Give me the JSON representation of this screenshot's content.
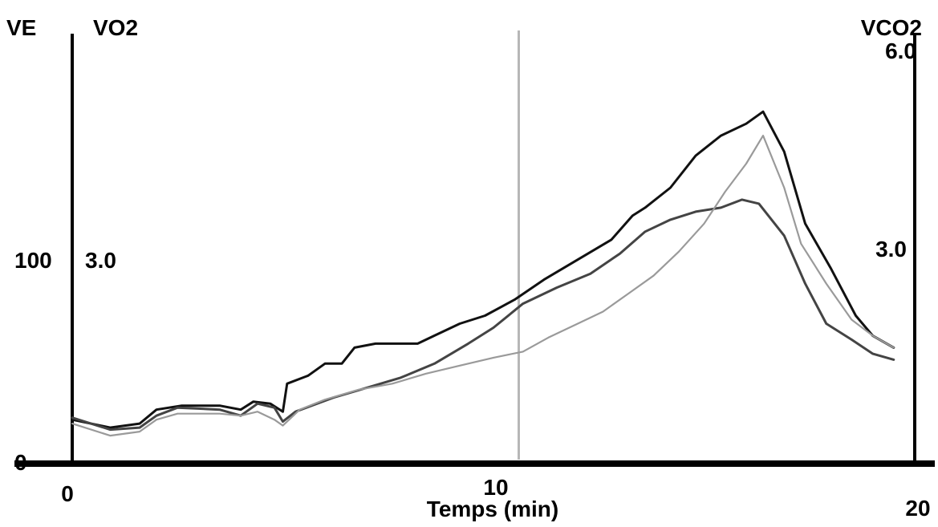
{
  "chart_data": {
    "type": "line",
    "title": "",
    "xlabel": "Temps (min)",
    "x_ticks": [
      {
        "value": 0,
        "label": "0"
      },
      {
        "value": 10,
        "label": "10"
      },
      {
        "value": 20,
        "label": "20"
      }
    ],
    "xlim": [
      0,
      20
    ],
    "marker_x": 10.6,
    "left_axis": {
      "ve_label": "VE",
      "vo2_label": "VO2",
      "ve_ticks": [
        {
          "value": 0,
          "label": "0"
        },
        {
          "value": 100,
          "label": "100"
        }
      ],
      "vo2_ticks": [
        {
          "value": 3.0,
          "label": "3.0"
        }
      ]
    },
    "right_axis": {
      "label": "VCO2",
      "ticks": [
        {
          "value": 3.0,
          "label": "3.0"
        },
        {
          "value": 6.0,
          "label": "6.0"
        }
      ]
    },
    "ylim_ve": [
      0,
      215
    ],
    "colors": {
      "axis": "#000000",
      "marker": "#b7b7b7",
      "series_dark": "#111111",
      "series_mid": "#444444",
      "series_light": "#9a9a9a"
    },
    "series": [
      {
        "axis": "VE",
        "color": "#111111",
        "points": [
          [
            0.0,
            22
          ],
          [
            0.9,
            18
          ],
          [
            1.6,
            20
          ],
          [
            2.0,
            27
          ],
          [
            2.6,
            29
          ],
          [
            3.5,
            29
          ],
          [
            4.0,
            27
          ],
          [
            4.3,
            31
          ],
          [
            4.7,
            30
          ],
          [
            5.0,
            26
          ],
          [
            5.1,
            40
          ],
          [
            5.6,
            44
          ],
          [
            6.0,
            50
          ],
          [
            6.4,
            50
          ],
          [
            6.7,
            58
          ],
          [
            7.2,
            60
          ],
          [
            8.2,
            60
          ],
          [
            8.6,
            64
          ],
          [
            9.2,
            70
          ],
          [
            9.8,
            74
          ],
          [
            10.5,
            82
          ],
          [
            11.2,
            92
          ],
          [
            12.0,
            102
          ],
          [
            12.8,
            112
          ],
          [
            13.3,
            124
          ],
          [
            13.6,
            128
          ],
          [
            14.2,
            138
          ],
          [
            14.8,
            154
          ],
          [
            15.4,
            164
          ],
          [
            16.0,
            170
          ],
          [
            16.4,
            176
          ],
          [
            16.9,
            156
          ],
          [
            17.4,
            120
          ],
          [
            18.0,
            98
          ],
          [
            18.6,
            74
          ],
          [
            19.0,
            64
          ],
          [
            19.5,
            58
          ]
        ]
      },
      {
        "axis": "VO2",
        "color": "#444444",
        "points": [
          [
            0.0,
            23
          ],
          [
            0.9,
            17
          ],
          [
            1.6,
            18
          ],
          [
            2.0,
            24
          ],
          [
            2.5,
            28
          ],
          [
            3.5,
            27
          ],
          [
            4.0,
            24
          ],
          [
            4.4,
            30
          ],
          [
            4.8,
            28
          ],
          [
            5.0,
            21
          ],
          [
            5.3,
            26
          ],
          [
            6.2,
            33
          ],
          [
            7.0,
            38
          ],
          [
            7.8,
            43
          ],
          [
            8.6,
            50
          ],
          [
            9.4,
            60
          ],
          [
            10.0,
            68
          ],
          [
            10.7,
            80
          ],
          [
            11.5,
            88
          ],
          [
            12.3,
            95
          ],
          [
            13.0,
            105
          ],
          [
            13.6,
            116
          ],
          [
            14.2,
            122
          ],
          [
            14.8,
            126
          ],
          [
            15.4,
            128
          ],
          [
            15.9,
            132
          ],
          [
            16.3,
            130
          ],
          [
            16.9,
            114
          ],
          [
            17.4,
            90
          ],
          [
            17.9,
            70
          ],
          [
            18.5,
            62
          ],
          [
            19.0,
            55
          ],
          [
            19.5,
            52
          ]
        ]
      },
      {
        "axis": "VCO2",
        "color": "#9a9a9a",
        "points": [
          [
            0.0,
            20
          ],
          [
            0.9,
            14
          ],
          [
            1.6,
            16
          ],
          [
            2.0,
            22
          ],
          [
            2.5,
            25
          ],
          [
            3.5,
            25
          ],
          [
            4.0,
            24
          ],
          [
            4.4,
            26
          ],
          [
            4.8,
            22
          ],
          [
            5.0,
            19
          ],
          [
            5.4,
            27
          ],
          [
            6.0,
            32
          ],
          [
            6.8,
            37
          ],
          [
            7.6,
            40
          ],
          [
            8.4,
            45
          ],
          [
            9.2,
            49
          ],
          [
            10.0,
            53
          ],
          [
            10.7,
            56
          ],
          [
            11.3,
            63
          ],
          [
            12.0,
            70
          ],
          [
            12.6,
            76
          ],
          [
            13.2,
            85
          ],
          [
            13.8,
            94
          ],
          [
            14.4,
            106
          ],
          [
            15.0,
            120
          ],
          [
            15.5,
            136
          ],
          [
            16.0,
            150
          ],
          [
            16.4,
            164
          ],
          [
            16.9,
            138
          ],
          [
            17.3,
            110
          ],
          [
            17.9,
            90
          ],
          [
            18.5,
            72
          ],
          [
            19.0,
            64
          ],
          [
            19.5,
            58
          ]
        ]
      }
    ]
  }
}
